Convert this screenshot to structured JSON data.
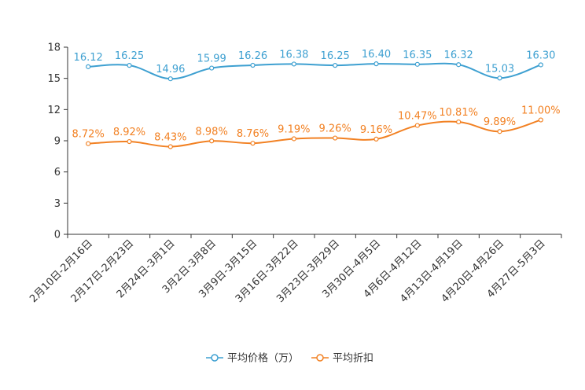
{
  "chart_data": {
    "type": "line",
    "categories": [
      "2月10日-2月16日",
      "2月17日-2月23日",
      "2月24日-3月1日",
      "3月2日-3月8日",
      "3月9日-3月15日",
      "3月16日-3月22日",
      "3月23日-3月29日",
      "3月30日-4月5日",
      "4月6日-4月12日",
      "4月13日-4月19日",
      "4月20日-4月26日",
      "4月27日-5月3日"
    ],
    "ylim": [
      0,
      18
    ],
    "yticks": [
      0,
      3,
      6,
      9,
      12,
      15,
      18
    ],
    "series": [
      {
        "name": "平均价格（万）",
        "color": "#3ea0d1",
        "values": [
          16.12,
          16.25,
          14.96,
          15.99,
          16.26,
          16.38,
          16.25,
          16.4,
          16.35,
          16.32,
          15.03,
          16.3
        ],
        "labels": [
          "16.12",
          "16.25",
          "14.96",
          "15.99",
          "16.26",
          "16.38",
          "16.25",
          "16.40",
          "16.35",
          "16.32",
          "15.03",
          "16.30"
        ]
      },
      {
        "name": "平均折扣",
        "color": "#f28123",
        "values": [
          8.72,
          8.92,
          8.43,
          8.98,
          8.76,
          9.19,
          9.26,
          9.16,
          10.47,
          10.81,
          9.89,
          11.0
        ],
        "labels": [
          "8.72%",
          "8.92%",
          "8.43%",
          "8.98%",
          "8.76%",
          "9.19%",
          "9.26%",
          "9.16%",
          "10.47%",
          "10.81%",
          "9.89%",
          "11.00%"
        ]
      }
    ],
    "legend": "bottom"
  }
}
